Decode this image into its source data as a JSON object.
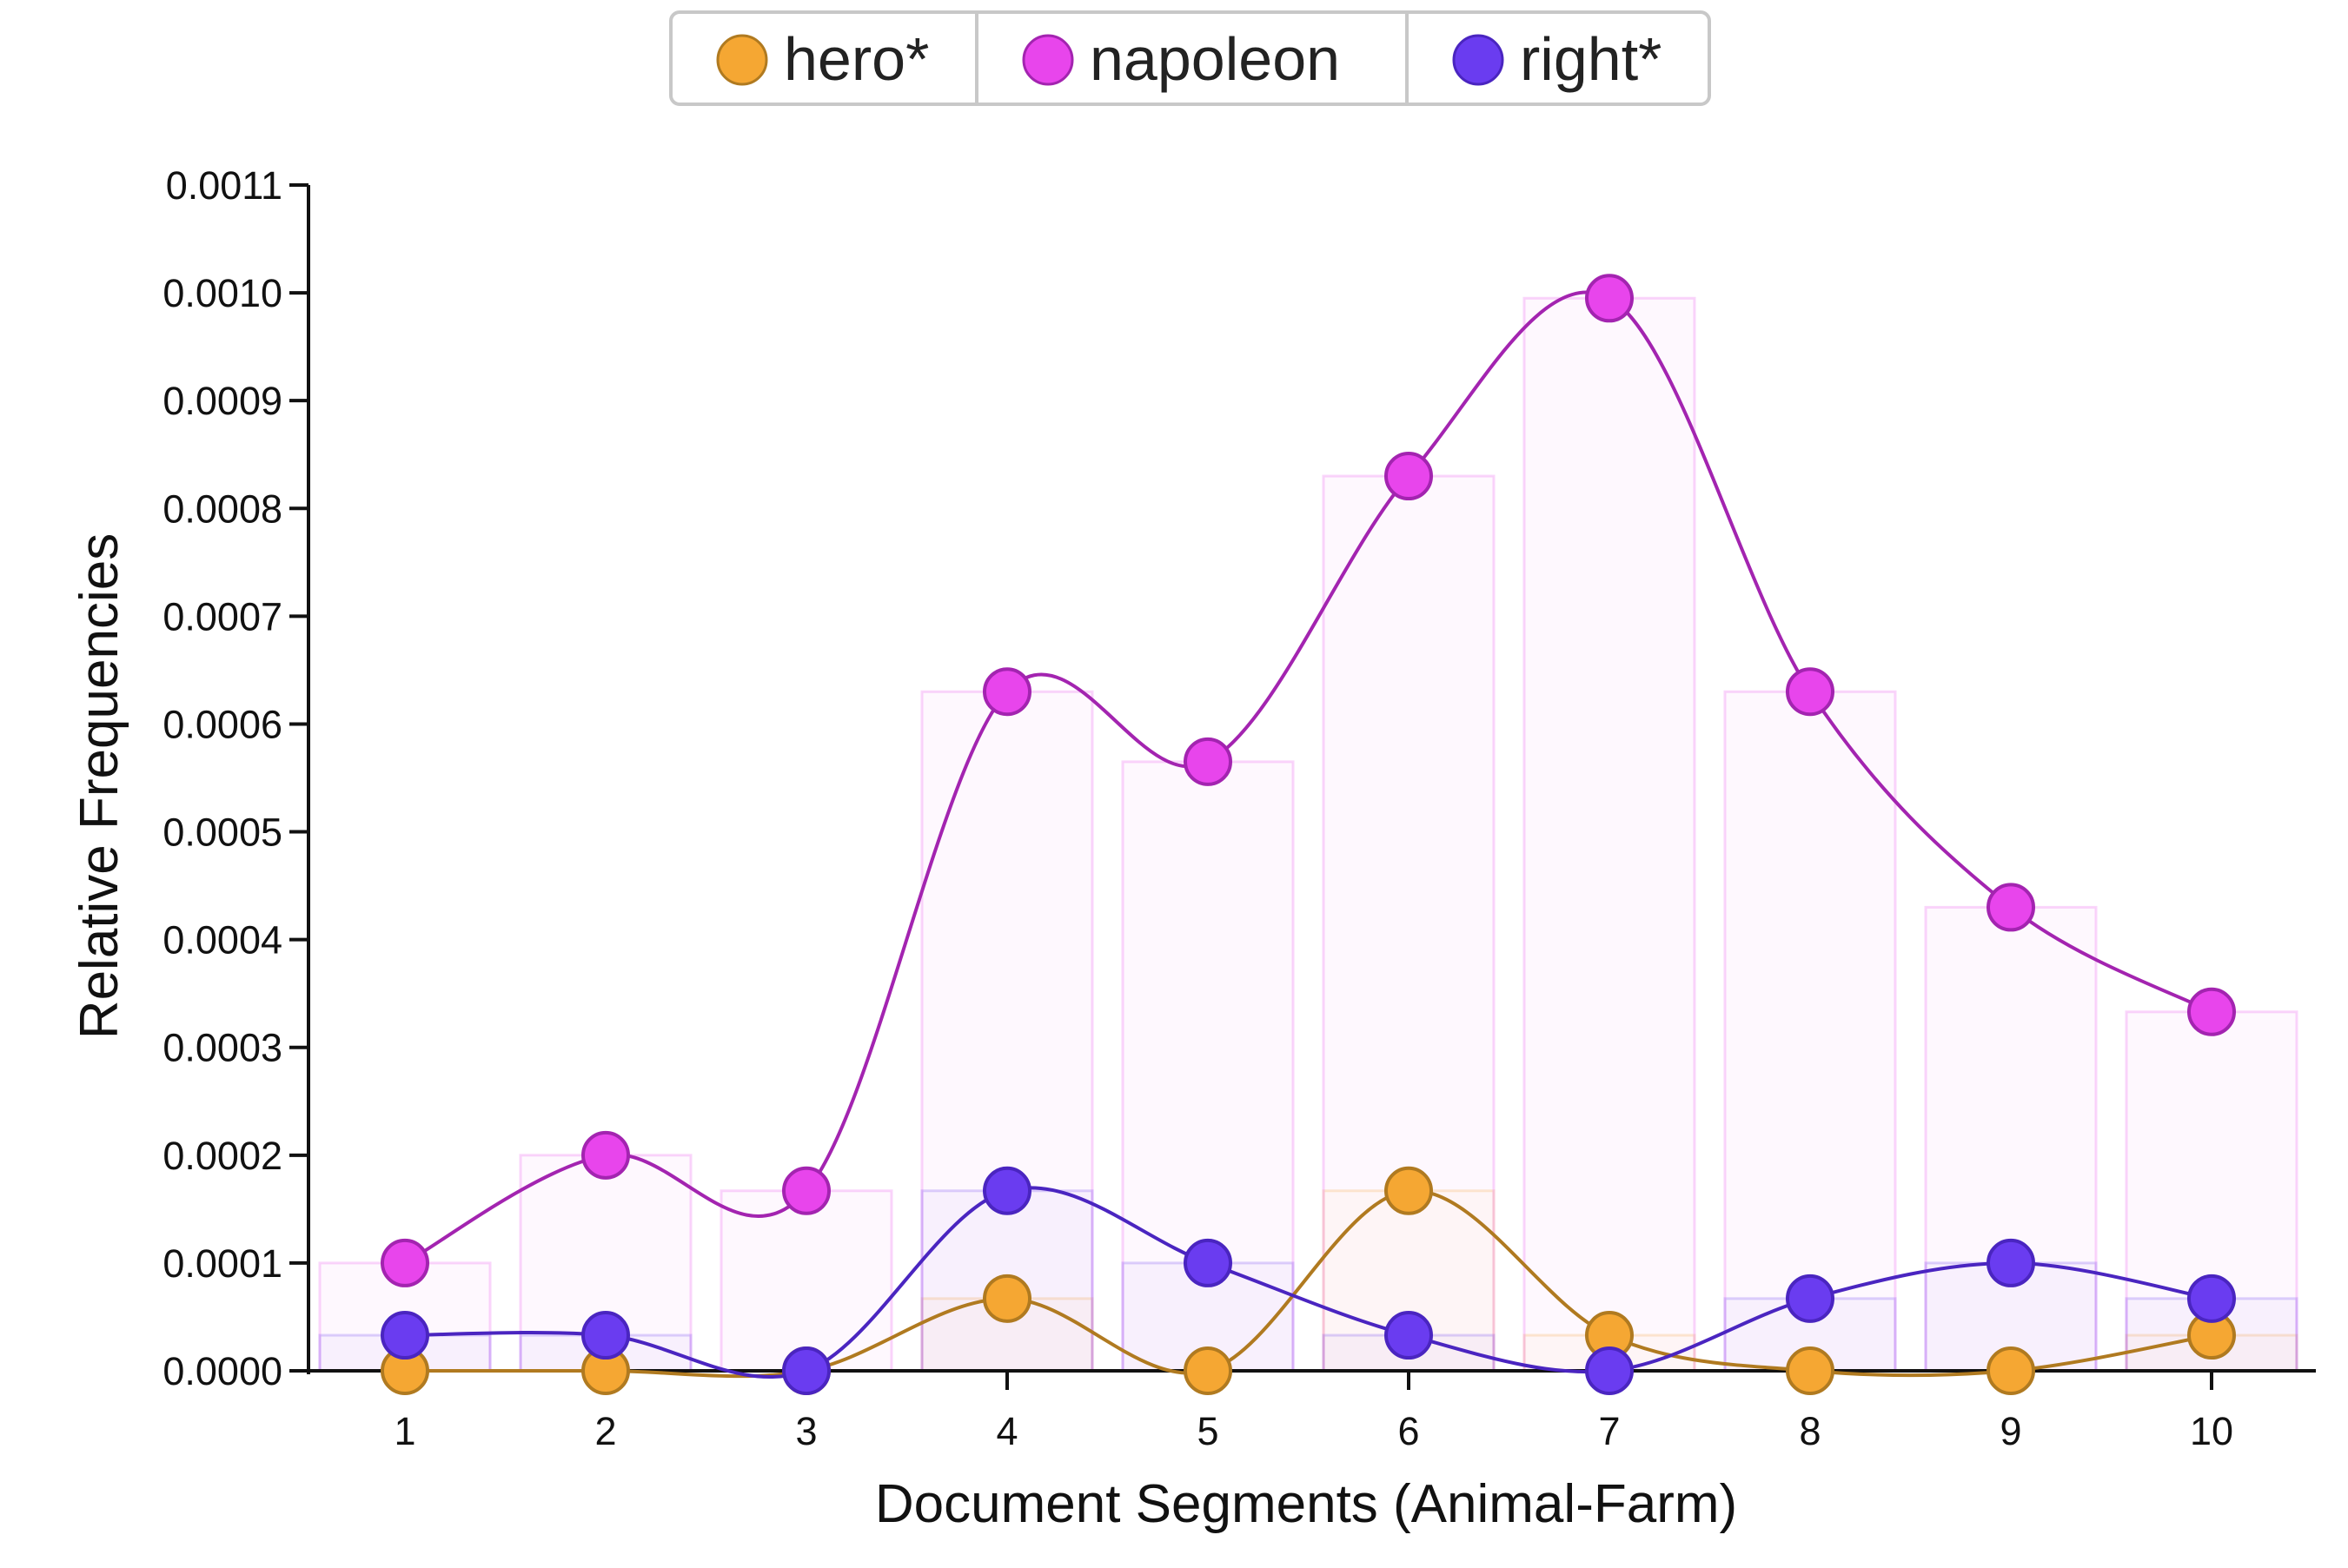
{
  "chart_data": {
    "type": "line",
    "xlabel": "Document Segments (Animal-Farm)",
    "ylabel": "Relative Frequencies",
    "categories": [
      "1",
      "2",
      "3",
      "4",
      "5",
      "6",
      "7",
      "8",
      "9",
      "10"
    ],
    "ylim": [
      0,
      0.0011
    ],
    "yticks": [
      "0.0000",
      "0.0001",
      "0.0002",
      "0.0003",
      "0.0004",
      "0.0005",
      "0.0006",
      "0.0007",
      "0.0008",
      "0.0009",
      "0.0010",
      "0.0011"
    ],
    "legend_position": "top-center",
    "grid": false,
    "series": [
      {
        "name": "hero*",
        "color": "#f5a733",
        "stroke": "#b07a20",
        "values": [
          0.0,
          0.0,
          0.0,
          6.7e-05,
          0.0,
          0.000167,
          3.3e-05,
          0.0,
          0.0,
          3.3e-05
        ]
      },
      {
        "name": "napoleon",
        "color": "#e845ec",
        "stroke": "#a324b0",
        "values": [
          0.0001,
          0.0002,
          0.000167,
          0.00063,
          0.000565,
          0.00083,
          0.000995,
          0.00063,
          0.00043,
          0.000333
        ]
      },
      {
        "name": "right*",
        "color": "#6a3cf0",
        "stroke": "#4a25c0",
        "values": [
          3.3e-05,
          3.3e-05,
          0.0,
          0.000167,
          0.0001,
          3.3e-05,
          0.0,
          6.7e-05,
          0.0001,
          6.7e-05
        ]
      }
    ]
  }
}
